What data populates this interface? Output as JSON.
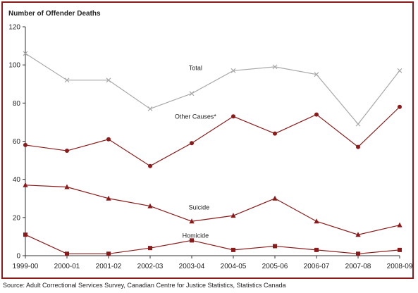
{
  "chart_data": {
    "type": "line",
    "title": "Number of Offender Deaths",
    "categories": [
      "1999-00",
      "2000-01",
      "2001-02",
      "2002-03",
      "2003-04",
      "2004-05",
      "2005-06",
      "2006-07",
      "2007-08",
      "2008-09"
    ],
    "ylim": [
      0,
      120
    ],
    "yticks": [
      0,
      20,
      40,
      60,
      80,
      100,
      120
    ],
    "grid": false,
    "series": [
      {
        "name": "Total",
        "marker": "x",
        "color": "#a9a9a9",
        "values": [
          106,
          92,
          92,
          77,
          85,
          97,
          99,
          95,
          69,
          97
        ]
      },
      {
        "name": "Other Causes*",
        "marker": "circle",
        "color": "#8b1a1a",
        "values": [
          58,
          55,
          61,
          47,
          59,
          73,
          64,
          74,
          57,
          78
        ]
      },
      {
        "name": "Suicide",
        "marker": "triangle",
        "color": "#8b1a1a",
        "values": [
          37,
          36,
          30,
          26,
          18,
          21,
          30,
          18,
          11,
          16
        ]
      },
      {
        "name": "Homicide",
        "marker": "square",
        "color": "#8b1a1a",
        "values": [
          11,
          1,
          1,
          4,
          8,
          3,
          5,
          3,
          1,
          3
        ]
      }
    ]
  },
  "source": "Source:  Adult Correctional Services Survey, Canadian Centre for Justice Statistics, Statistics Canada"
}
